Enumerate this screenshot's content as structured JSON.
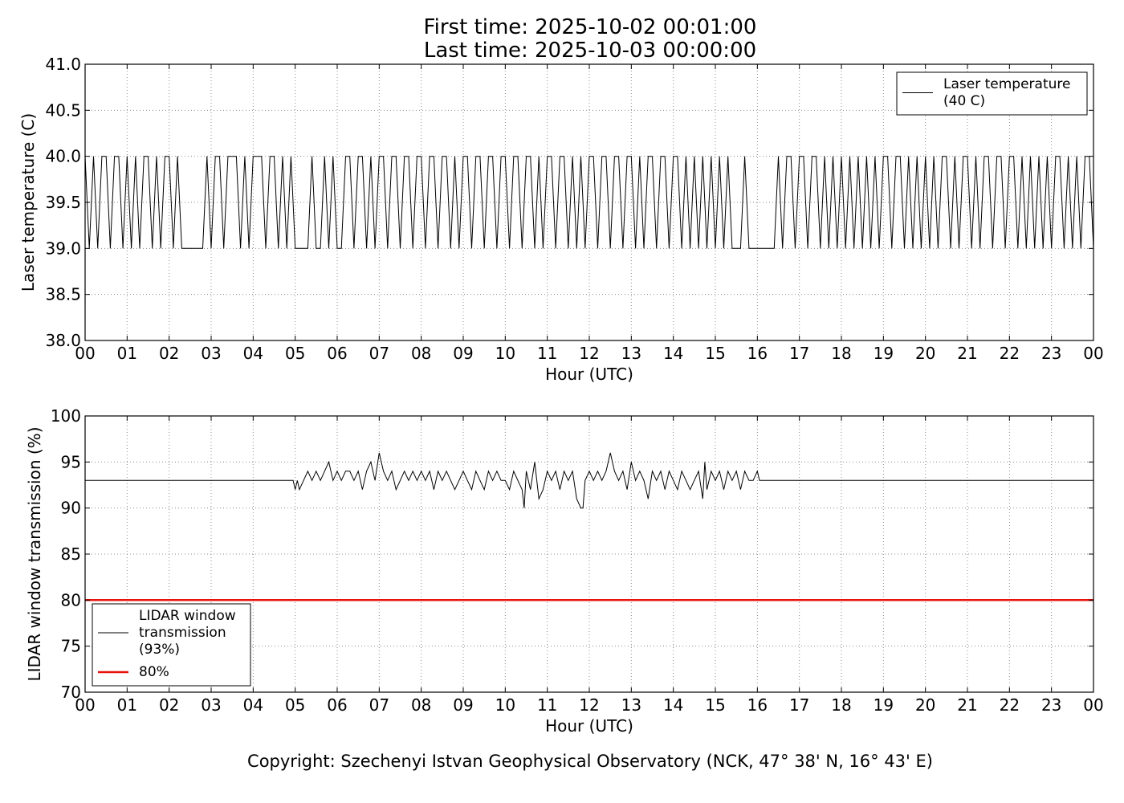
{
  "header": {
    "first_time": "First time: 2025-10-02 00:01:00",
    "last_time": "Last time: 2025-10-03 00:00:00"
  },
  "footer": {
    "copyright": "Copyright: Szechenyi Istvan Geophysical Observatory (NCK, 47° 38' N, 16° 43' E)"
  },
  "colors": {
    "line": "#000000",
    "threshold": "#e8130f",
    "grid": "#8c8c8c"
  },
  "chart_data": [
    {
      "type": "line",
      "title": "",
      "xlabel": "Hour (UTC)",
      "ylabel": "Laser temperature (C)",
      "xlim": [
        0,
        24
      ],
      "ylim": [
        38.0,
        41.0
      ],
      "x_tick_labels": [
        "00",
        "01",
        "02",
        "03",
        "04",
        "05",
        "06",
        "07",
        "08",
        "09",
        "10",
        "11",
        "12",
        "13",
        "14",
        "15",
        "16",
        "17",
        "18",
        "19",
        "20",
        "21",
        "22",
        "23",
        "00"
      ],
      "y_ticks": [
        38.0,
        38.5,
        39.0,
        39.5,
        40.0,
        40.5,
        41.0
      ],
      "y_tick_labels": [
        "38.0",
        "38.5",
        "39.0",
        "39.5",
        "40.0",
        "40.5",
        "41.0"
      ],
      "grid": true,
      "legend_position": "top-right",
      "series": [
        {
          "name": "Laser temperature\n(40 C)",
          "x": [
            0.0,
            0.1,
            0.2,
            0.3,
            0.4,
            0.5,
            0.6,
            0.7,
            0.8,
            0.9,
            1.0,
            1.1,
            1.2,
            1.3,
            1.4,
            1.5,
            1.6,
            1.7,
            1.8,
            1.9,
            2.0,
            2.1,
            2.2,
            2.3,
            2.4,
            2.5,
            2.6,
            2.7,
            2.8,
            2.9,
            3.0,
            3.1,
            3.2,
            3.3,
            3.4,
            3.5,
            3.6,
            3.7,
            3.8,
            3.9,
            4.0,
            4.1,
            4.2,
            4.3,
            4.4,
            4.5,
            4.6,
            4.7,
            4.8,
            4.9,
            5.0,
            5.1,
            5.2,
            5.3,
            5.4,
            5.5,
            5.6,
            5.7,
            5.8,
            5.9,
            6.0,
            6.1,
            6.2,
            6.3,
            6.4,
            6.5,
            6.6,
            6.7,
            6.8,
            6.9,
            7.0,
            7.1,
            7.2,
            7.3,
            7.4,
            7.5,
            7.6,
            7.7,
            7.8,
            7.9,
            8.0,
            8.1,
            8.2,
            8.3,
            8.4,
            8.5,
            8.6,
            8.7,
            8.8,
            8.9,
            9.0,
            9.1,
            9.2,
            9.3,
            9.4,
            9.5,
            9.6,
            9.7,
            9.8,
            9.9,
            10.0,
            10.1,
            10.2,
            10.3,
            10.4,
            10.5,
            10.6,
            10.7,
            10.8,
            10.9,
            11.0,
            11.1,
            11.2,
            11.3,
            11.4,
            11.5,
            11.6,
            11.7,
            11.8,
            11.9,
            12.0,
            12.1,
            12.2,
            12.3,
            12.4,
            12.5,
            12.6,
            12.7,
            12.8,
            12.9,
            13.0,
            13.1,
            13.2,
            13.3,
            13.4,
            13.5,
            13.6,
            13.7,
            13.8,
            13.9,
            14.0,
            14.1,
            14.2,
            14.3,
            14.4,
            14.5,
            14.6,
            14.7,
            14.8,
            14.9,
            15.0,
            15.1,
            15.2,
            15.3,
            15.4,
            15.5,
            15.6,
            15.7,
            15.8,
            15.9,
            16.0,
            16.1,
            16.2,
            16.3,
            16.4,
            16.5,
            16.6,
            16.7,
            16.8,
            16.9,
            17.0,
            17.1,
            17.2,
            17.3,
            17.4,
            17.5,
            17.6,
            17.7,
            17.8,
            17.9,
            18.0,
            18.1,
            18.2,
            18.3,
            18.4,
            18.5,
            18.6,
            18.7,
            18.8,
            18.9,
            19.0,
            19.1,
            19.2,
            19.3,
            19.4,
            19.5,
            19.6,
            19.7,
            19.8,
            19.9,
            20.0,
            20.1,
            20.2,
            20.3,
            20.4,
            20.5,
            20.6,
            20.7,
            20.8,
            20.9,
            21.0,
            21.1,
            21.2,
            21.3,
            21.4,
            21.5,
            21.6,
            21.7,
            21.8,
            21.9,
            22.0,
            22.1,
            22.2,
            22.3,
            22.4,
            22.5,
            22.6,
            22.7,
            22.8,
            22.9,
            23.0,
            23.1,
            23.2,
            23.3,
            23.4,
            23.5,
            23.6,
            23.7,
            23.8,
            23.9,
            24.0
          ],
          "y": [
            40,
            39,
            40,
            39,
            40,
            40,
            39,
            40,
            40,
            39,
            40,
            39,
            40,
            39,
            40,
            40,
            39,
            40,
            39,
            40,
            40,
            39,
            40,
            39,
            39,
            39,
            39,
            39,
            39,
            40,
            39,
            40,
            40,
            39,
            40,
            40,
            40,
            39,
            40,
            39,
            40,
            40,
            40,
            39,
            40,
            40,
            39,
            40,
            39,
            40,
            39,
            39,
            39,
            39,
            40,
            39,
            39,
            40,
            39,
            40,
            39,
            39,
            40,
            40,
            39,
            40,
            40,
            39,
            40,
            39,
            40,
            40,
            39,
            40,
            40,
            39,
            40,
            40,
            39,
            40,
            40,
            39,
            40,
            40,
            39,
            40,
            40,
            39,
            40,
            39,
            40,
            40,
            39,
            40,
            40,
            39,
            40,
            40,
            39,
            40,
            40,
            39,
            40,
            40,
            39,
            40,
            40,
            39,
            40,
            39,
            40,
            40,
            39,
            40,
            40,
            39,
            40,
            39,
            40,
            39,
            40,
            40,
            39,
            40,
            40,
            39,
            40,
            40,
            39,
            40,
            40,
            39,
            40,
            39,
            40,
            40,
            39,
            40,
            40,
            39,
            40,
            40,
            39,
            40,
            39,
            40,
            39,
            40,
            39,
            40,
            39,
            40,
            39,
            40,
            39,
            39,
            39,
            40,
            39,
            39,
            39,
            39,
            39,
            39,
            39,
            40,
            39,
            40,
            40,
            39,
            40,
            40,
            39,
            40,
            40,
            39,
            40,
            39,
            40,
            39,
            40,
            39,
            40,
            39,
            40,
            39,
            40,
            39,
            40,
            39,
            40,
            40,
            39,
            40,
            40,
            39,
            40,
            39,
            40,
            39,
            40,
            39,
            40,
            39,
            40,
            40,
            39,
            40,
            39,
            40,
            40,
            39,
            40,
            39,
            40,
            40,
            39,
            40,
            40,
            39,
            40,
            40,
            39,
            40,
            39,
            40,
            39,
            40,
            39,
            40,
            39,
            40,
            40,
            39,
            40,
            39,
            40,
            39,
            40,
            40,
            39
          ]
        }
      ]
    },
    {
      "type": "line",
      "title": "",
      "xlabel": "Hour (UTC)",
      "ylabel": "LIDAR window transmission (%)",
      "xlim": [
        0,
        24
      ],
      "ylim": [
        70,
        100
      ],
      "x_tick_labels": [
        "00",
        "01",
        "02",
        "03",
        "04",
        "05",
        "06",
        "07",
        "08",
        "09",
        "10",
        "11",
        "12",
        "13",
        "14",
        "15",
        "16",
        "17",
        "18",
        "19",
        "20",
        "21",
        "22",
        "23",
        "00"
      ],
      "y_ticks": [
        70,
        75,
        80,
        85,
        90,
        95,
        100
      ],
      "y_tick_labels": [
        "70",
        "75",
        "80",
        "85",
        "90",
        "95",
        "100"
      ],
      "grid": true,
      "legend_position": "lower-left",
      "series": [
        {
          "name": "LIDAR window\ntransmission\n(93%)",
          "x": [
            0,
            4.95,
            5.0,
            5.05,
            5.1,
            5.2,
            5.3,
            5.4,
            5.5,
            5.6,
            5.7,
            5.8,
            5.9,
            6.0,
            6.1,
            6.2,
            6.3,
            6.4,
            6.5,
            6.6,
            6.7,
            6.8,
            6.9,
            7.0,
            7.1,
            7.2,
            7.3,
            7.4,
            7.5,
            7.6,
            7.7,
            7.8,
            7.9,
            8.0,
            8.1,
            8.2,
            8.3,
            8.4,
            8.5,
            8.6,
            8.7,
            8.8,
            8.9,
            9.0,
            9.1,
            9.2,
            9.3,
            9.4,
            9.5,
            9.6,
            9.7,
            9.8,
            9.9,
            10.0,
            10.1,
            10.2,
            10.3,
            10.4,
            10.45,
            10.5,
            10.6,
            10.7,
            10.8,
            10.9,
            11.0,
            11.1,
            11.2,
            11.3,
            11.4,
            11.5,
            11.6,
            11.7,
            11.8,
            11.85,
            11.9,
            12.0,
            12.1,
            12.2,
            12.3,
            12.4,
            12.5,
            12.6,
            12.7,
            12.8,
            12.9,
            13.0,
            13.1,
            13.2,
            13.3,
            13.4,
            13.5,
            13.6,
            13.7,
            13.8,
            13.9,
            14.0,
            14.1,
            14.2,
            14.3,
            14.4,
            14.5,
            14.6,
            14.7,
            14.75,
            14.8,
            14.9,
            15.0,
            15.1,
            15.2,
            15.3,
            15.4,
            15.5,
            15.6,
            15.7,
            15.8,
            15.9,
            16.0,
            16.05,
            24
          ],
          "y": [
            93,
            93,
            92,
            93,
            92,
            93,
            94,
            93,
            94,
            93,
            94,
            95,
            93,
            94,
            93,
            94,
            94,
            93,
            94,
            92,
            94,
            95,
            93,
            96,
            94,
            93,
            94,
            92,
            93,
            94,
            93,
            94,
            93,
            94,
            93,
            94,
            92,
            94,
            93,
            94,
            93,
            92,
            93,
            94,
            93,
            92,
            94,
            93,
            92,
            94,
            93,
            94,
            93,
            93,
            92,
            94,
            93,
            92,
            90,
            94,
            92,
            95,
            91,
            92,
            94,
            93,
            94,
            92,
            94,
            93,
            94,
            91,
            90,
            90,
            93,
            94,
            93,
            94,
            93,
            94,
            96,
            94,
            93,
            94,
            92,
            95,
            93,
            94,
            93,
            91,
            94,
            93,
            94,
            92,
            94,
            93,
            92,
            94,
            93,
            92,
            93,
            94,
            91,
            95,
            92,
            94,
            93,
            94,
            92,
            94,
            93,
            94,
            92,
            94,
            93,
            93,
            94,
            93,
            93
          ]
        },
        {
          "name": "80%",
          "x": [
            0,
            24
          ],
          "y": [
            80,
            80
          ]
        }
      ]
    }
  ]
}
